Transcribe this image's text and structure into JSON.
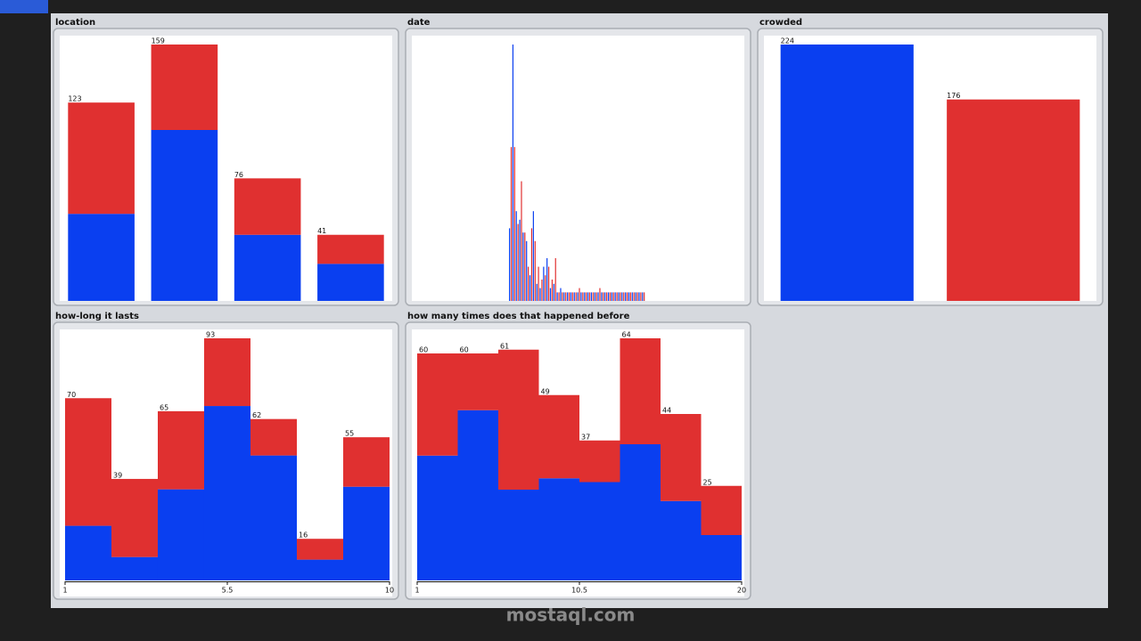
{
  "watermark": "mostaql.com",
  "chart_data": [
    {
      "type": "bar",
      "stacked": true,
      "title": "location",
      "categories": [
        null,
        null,
        null,
        null
      ],
      "totals": [
        123,
        159,
        76,
        41
      ],
      "series": [
        {
          "color": "#0a3ff0",
          "values": [
            54,
            106,
            41,
            23
          ]
        },
        {
          "color": "#e03030",
          "values": [
            69,
            53,
            35,
            18
          ]
        }
      ]
    },
    {
      "type": "bar",
      "stacked": false,
      "title": "date",
      "categories": [
        null,
        null,
        null,
        null,
        null,
        null,
        null,
        null,
        null,
        null,
        null,
        null,
        null,
        null,
        null,
        null,
        null,
        null,
        null,
        null,
        null,
        null,
        null,
        null,
        null,
        null,
        null,
        null,
        null,
        null,
        null,
        null,
        null,
        null,
        null,
        null,
        null,
        null,
        null,
        null
      ],
      "series": [
        {
          "color": "#0a3ff0",
          "values": [
            17,
            60,
            21,
            19,
            16,
            14,
            6,
            21,
            4,
            3,
            8,
            10,
            3,
            4,
            2,
            3,
            2,
            2,
            2,
            2,
            2,
            2,
            2,
            2,
            2,
            2,
            2,
            2,
            2,
            2,
            2,
            2,
            2,
            2,
            2,
            2,
            2,
            2,
            2,
            2
          ]
        },
        {
          "color": "#e03030",
          "values": [
            36,
            36,
            18,
            28,
            16,
            8,
            17,
            14,
            8,
            5,
            6,
            8,
            5,
            10,
            2,
            2,
            2,
            2,
            2,
            2,
            3,
            2,
            2,
            2,
            2,
            2,
            3,
            2,
            2,
            2,
            2,
            2,
            2,
            2,
            2,
            2,
            2,
            2,
            2,
            2
          ]
        }
      ]
    },
    {
      "type": "bar",
      "stacked": false,
      "title": "crowded",
      "categories": [
        null,
        null
      ],
      "values": [
        224,
        176
      ],
      "colors": [
        "#0a3ff0",
        "#e03030"
      ]
    },
    {
      "type": "histogram",
      "title": "how-long it lasts",
      "bins": [
        1,
        2.2857,
        3.5714,
        4.8571,
        6.1429,
        7.4286,
        8.7143,
        10
      ],
      "xlim": [
        1,
        10
      ],
      "xticks": [
        1,
        5.5,
        10
      ],
      "totals": [
        70,
        39,
        65,
        93,
        62,
        16,
        55
      ],
      "series": [
        {
          "color": "#0a3ff0",
          "values": [
            21,
            9,
            35,
            67,
            48,
            8,
            36
          ]
        },
        {
          "color": "#e03030",
          "values": [
            49,
            30,
            30,
            26,
            14,
            8,
            19
          ]
        }
      ]
    },
    {
      "type": "histogram",
      "title": "how many times does that happened before",
      "bins": [
        1,
        3.375,
        5.75,
        8.125,
        10.5,
        12.875,
        15.25,
        17.625,
        20
      ],
      "xlim": [
        1,
        20
      ],
      "xticks": [
        1,
        10.5,
        20
      ],
      "totals": [
        60,
        60,
        61,
        49,
        37,
        64,
        44,
        25
      ],
      "series": [
        {
          "color": "#0a3ff0",
          "values": [
            33,
            45,
            24,
            27,
            26,
            36,
            21,
            12
          ]
        },
        {
          "color": "#e03030",
          "values": [
            27,
            15,
            37,
            22,
            11,
            28,
            23,
            13
          ]
        }
      ]
    }
  ]
}
